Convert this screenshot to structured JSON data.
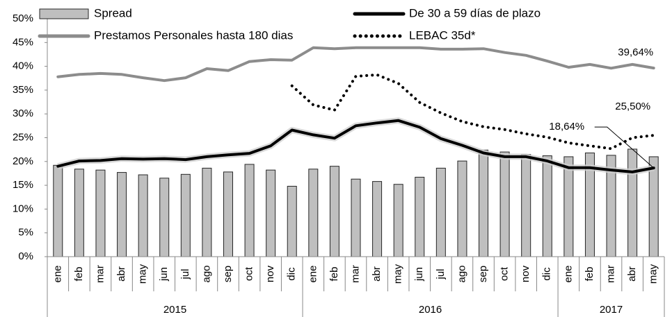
{
  "chart_data": {
    "type": "bar-line",
    "categories": [
      "ene",
      "feb",
      "mar",
      "abr",
      "may",
      "jun",
      "jul",
      "ago",
      "sep",
      "oct",
      "nov",
      "dic",
      "ene",
      "feb",
      "mar",
      "abr",
      "may",
      "jun",
      "jul",
      "ago",
      "sep",
      "oct",
      "nov",
      "dic",
      "ene",
      "feb",
      "mar",
      "abr",
      "may"
    ],
    "x_groups": [
      {
        "label": "2015",
        "span": 12
      },
      {
        "label": "2016",
        "span": 12
      },
      {
        "label": "2017",
        "span": 5
      }
    ],
    "series": [
      {
        "name": "Spread",
        "type": "bar",
        "color": "#bfbfbf",
        "values": [
          19.2,
          18.4,
          18.2,
          17.7,
          17.2,
          16.5,
          17.3,
          18.6,
          17.8,
          19.4,
          18.2,
          14.8,
          18.4,
          19.0,
          16.3,
          15.8,
          15.2,
          16.7,
          18.6,
          20.1,
          22.4,
          22.0,
          21.5,
          21.2,
          21.0,
          21.8,
          21.3,
          22.6,
          21.0
        ]
      },
      {
        "name": "De 30 a 59 días de plazo",
        "type": "line",
        "color": "#000000",
        "style": "solid",
        "values": [
          19.0,
          20.1,
          20.2,
          20.6,
          20.5,
          20.6,
          20.4,
          21.0,
          21.4,
          21.7,
          23.3,
          26.6,
          25.6,
          24.9,
          27.5,
          28.1,
          28.6,
          27.2,
          24.8,
          23.4,
          21.8,
          21.0,
          21.0,
          20.1,
          18.7,
          18.7,
          18.2,
          17.8,
          18.64
        ],
        "value_labels": [
          null,
          null,
          null,
          null,
          null,
          null,
          null,
          null,
          null,
          null,
          null,
          null,
          null,
          null,
          null,
          null,
          null,
          null,
          null,
          null,
          null,
          null,
          null,
          null,
          null,
          null,
          null,
          null,
          "18,64%"
        ]
      },
      {
        "name": "Prestamos Personales hasta 180 dias",
        "type": "line",
        "color": "#8c8c8c",
        "style": "solid",
        "values": [
          37.8,
          38.3,
          38.5,
          38.3,
          37.6,
          37.0,
          37.6,
          39.5,
          39.1,
          41.0,
          41.4,
          41.3,
          43.9,
          43.7,
          43.9,
          43.9,
          43.9,
          43.9,
          43.6,
          43.6,
          43.7,
          42.9,
          42.3,
          41.1,
          39.8,
          40.4,
          39.6,
          40.4,
          39.64
        ],
        "value_labels": [
          null,
          null,
          null,
          null,
          null,
          null,
          null,
          null,
          null,
          null,
          null,
          null,
          null,
          null,
          null,
          null,
          null,
          null,
          null,
          null,
          null,
          null,
          null,
          null,
          null,
          null,
          null,
          null,
          "39,64%"
        ]
      },
      {
        "name": "LEBAC 35d*",
        "type": "line",
        "color": "#000000",
        "style": "dotted",
        "values": [
          null,
          null,
          null,
          null,
          null,
          null,
          null,
          null,
          null,
          null,
          null,
          35.9,
          31.9,
          30.8,
          37.9,
          38.2,
          36.4,
          32.4,
          30.2,
          28.4,
          27.3,
          26.7,
          25.8,
          25.1,
          23.9,
          23.3,
          22.7,
          25.0,
          25.5
        ],
        "value_labels": [
          null,
          null,
          null,
          null,
          null,
          null,
          null,
          null,
          null,
          null,
          null,
          null,
          null,
          null,
          null,
          null,
          null,
          null,
          null,
          null,
          null,
          null,
          null,
          null,
          null,
          null,
          null,
          null,
          "25,50%"
        ]
      }
    ],
    "ylim": [
      0,
      50
    ],
    "yticks": [
      {
        "value": 0,
        "label": "0%"
      },
      {
        "value": 5,
        "label": "5%"
      },
      {
        "value": 10,
        "label": "10%"
      },
      {
        "value": 15,
        "label": "15%"
      },
      {
        "value": 20,
        "label": "20%"
      },
      {
        "value": 25,
        "label": "25%"
      },
      {
        "value": 30,
        "label": "30%"
      },
      {
        "value": 35,
        "label": "35%"
      },
      {
        "value": 40,
        "label": "40%"
      },
      {
        "value": 45,
        "label": "45%"
      },
      {
        "value": 50,
        "label": "50%"
      }
    ],
    "grid": false,
    "legend": "top"
  }
}
